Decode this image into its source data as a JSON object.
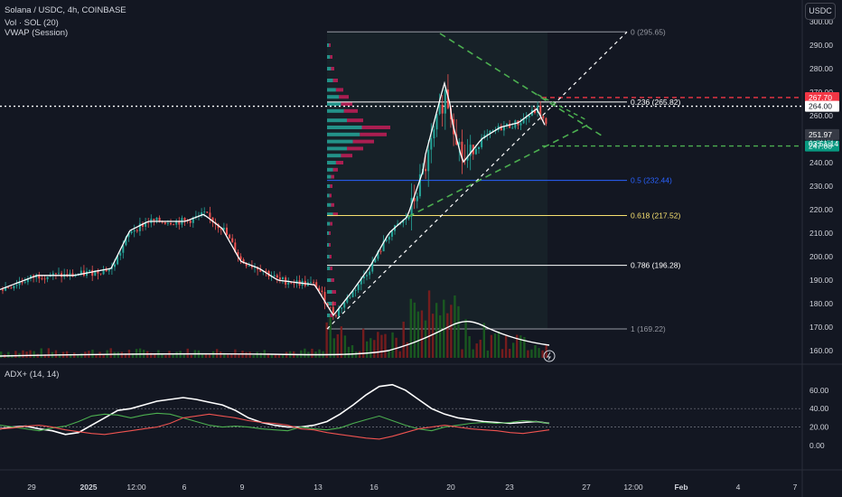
{
  "header": {
    "symbol_line": "Solana / USDC, 4h, COINBASE",
    "indicator_1": "Vol · SOL (20)",
    "indicator_2": "VWAP (Session)",
    "currency_button": "USDC",
    "lower_pane_title": "ADX+ (14, 14)"
  },
  "colors": {
    "background": "#131722",
    "up": "#26a69a",
    "down": "#ef5350",
    "fib_blue": "#2962ff",
    "fib_yellow": "#f7e070",
    "trend_green": "#4caf50",
    "price_red": "#f23645"
  },
  "chart_data": [
    {
      "type": "candlestick",
      "title": "",
      "y_axis_ticks": [
        300,
        290,
        280,
        270,
        260,
        250,
        240,
        230,
        220,
        210,
        200,
        190,
        180,
        170,
        160
      ],
      "x_axis_ticks": [
        "29",
        "2025",
        "12:00",
        "6",
        "9",
        "13",
        "16",
        "20",
        "23",
        "27",
        "12:00",
        "Feb",
        "4",
        "7"
      ],
      "price_path": [
        {
          "date": "2024-12-26",
          "price": 186
        },
        {
          "date": "2024-12-28",
          "price": 192
        },
        {
          "date": "2024-12-30",
          "price": 192
        },
        {
          "date": "2025-01-01",
          "price": 195
        },
        {
          "date": "2025-01-02",
          "price": 211
        },
        {
          "date": "2025-01-03",
          "price": 215
        },
        {
          "date": "2025-01-05",
          "price": 215
        },
        {
          "date": "2025-01-06",
          "price": 218
        },
        {
          "date": "2025-01-07",
          "price": 212
        },
        {
          "date": "2025-01-08",
          "price": 198
        },
        {
          "date": "2025-01-09",
          "price": 195
        },
        {
          "date": "2025-01-10",
          "price": 190
        },
        {
          "date": "2025-01-12",
          "price": 188
        },
        {
          "date": "2025-01-13",
          "price": 175
        },
        {
          "date": "2025-01-14",
          "price": 185
        },
        {
          "date": "2025-01-15",
          "price": 196
        },
        {
          "date": "2025-01-16",
          "price": 210
        },
        {
          "date": "2025-01-17",
          "price": 217
        },
        {
          "date": "2025-01-18",
          "price": 240
        },
        {
          "date": "2025-01-19",
          "price": 270
        },
        {
          "date": "2025-01-19T12",
          "price": 255
        },
        {
          "date": "2025-01-20",
          "price": 240
        },
        {
          "date": "2025-01-21",
          "price": 250
        },
        {
          "date": "2025-01-22",
          "price": 255
        },
        {
          "date": "2025-01-23",
          "price": 257
        },
        {
          "date": "2025-01-24",
          "price": 263
        },
        {
          "date": "2025-01-24T16",
          "price": 252
        }
      ],
      "fibonacci": [
        {
          "level": "0",
          "value": 295.65,
          "label": "0 (295.65)"
        },
        {
          "level": "0.236",
          "value": 265.82,
          "label": "0.236 (265.82)"
        },
        {
          "level": "0.5",
          "value": 232.44,
          "label": "0.5 (232.44)"
        },
        {
          "level": "0.618",
          "value": 217.52,
          "label": "0.618 (217.52)"
        },
        {
          "level": "0.786",
          "value": 196.28,
          "label": "0.786 (196.28)"
        },
        {
          "level": "1",
          "value": 169.22,
          "label": "1 (169.22)"
        }
      ],
      "price_labels": [
        {
          "value": 267.7,
          "text": "267.70",
          "color": "#f23645"
        },
        {
          "value": 264.0,
          "text": "264.00",
          "color": "#ffffff"
        },
        {
          "value": 251.97,
          "text": "251.97",
          "color": "#363a45"
        },
        {
          "value": 247.08,
          "text": "247.08",
          "color": "#089981"
        }
      ],
      "countdown": "03:51:14",
      "horizontal_lines": [
        {
          "value": 267.7,
          "style": "dashed",
          "color": "#f23645"
        },
        {
          "value": 264.0,
          "style": "dotted",
          "color": "#ffffff"
        },
        {
          "value": 247.08,
          "style": "dashed",
          "color": "#4caf50"
        }
      ]
    },
    {
      "type": "line",
      "title": "ADX+ (14, 14)",
      "y_axis_ticks": [
        60.0,
        40.0,
        20.0,
        0.0
      ],
      "ylim": [
        0,
        70
      ],
      "series": [
        {
          "color": "#ffffff",
          "values": [
            18,
            20,
            21,
            18,
            16,
            12,
            14,
            22,
            30,
            38,
            40,
            44,
            48,
            50,
            52,
            50,
            47,
            44,
            38,
            30,
            25,
            22,
            20,
            20,
            22,
            26,
            34,
            44,
            55,
            64,
            66,
            60,
            50,
            40,
            34,
            30,
            28,
            26,
            25,
            24,
            25,
            26,
            24
          ]
        },
        {
          "color": "#4caf50",
          "values": [
            22,
            20,
            18,
            16,
            19,
            21,
            26,
            32,
            34,
            33,
            30,
            33,
            35,
            34,
            30,
            26,
            22,
            20,
            21,
            20,
            18,
            17,
            16,
            20,
            18,
            17,
            19,
            24,
            28,
            32,
            27,
            22,
            18,
            16,
            20,
            22,
            24,
            25,
            24,
            25,
            27,
            26,
            24
          ]
        },
        {
          "color": "#ef5350",
          "values": [
            18,
            19,
            21,
            22,
            20,
            17,
            15,
            13,
            12,
            14,
            16,
            18,
            20,
            24,
            30,
            32,
            34,
            32,
            30,
            27,
            25,
            24,
            22,
            18,
            17,
            14,
            12,
            10,
            8,
            7,
            10,
            14,
            18,
            20,
            22,
            20,
            18,
            17,
            16,
            14,
            13,
            15,
            17
          ]
        }
      ]
    }
  ]
}
